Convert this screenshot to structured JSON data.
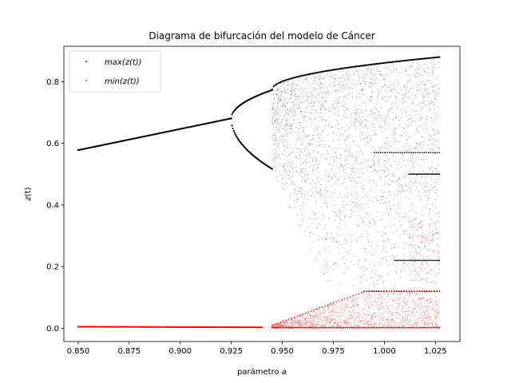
{
  "chart_data": {
    "type": "scatter",
    "title": "Diagrama de bifurcación del modelo de Cáncer",
    "xlabel_text": "parámetro",
    "xlabel_var": "a",
    "ylabel_var": "z",
    "ylabel_arg": "(t)",
    "xlim": [
      0.843,
      1.037
    ],
    "ylim": [
      -0.043,
      0.915
    ],
    "xticks": [
      0.85,
      0.875,
      0.9,
      0.925,
      0.95,
      0.975,
      1.0,
      1.025
    ],
    "xtick_labels": [
      "0.850",
      "0.875",
      "0.900",
      "0.925",
      "0.950",
      "0.975",
      "1.000",
      "1.025"
    ],
    "yticks": [
      0.0,
      0.2,
      0.4,
      0.6,
      0.8
    ],
    "ytick_labels": [
      "0.0",
      "0.2",
      "0.4",
      "0.6",
      "0.8"
    ],
    "grid": false,
    "legend_position": "top-left",
    "a_range": [
      0.85,
      1.027
    ],
    "series": [
      {
        "name": "max(z(t))",
        "color": "#000000",
        "stable_branch": {
          "a": [
            0.85,
            0.925
          ],
          "z": [
            0.578,
            0.681
          ]
        },
        "period2_upper": {
          "a": [
            0.925,
            0.945
          ],
          "z": [
            0.681,
            0.773
          ]
        },
        "period2_lower": {
          "a": [
            0.925,
            0.945
          ],
          "z": [
            0.681,
            0.517
          ]
        },
        "chaotic_band": {
          "a": [
            0.945,
            1.027
          ],
          "upper_z": [
            0.775,
            0.88
          ],
          "lower_z_min": 0.13
        }
      },
      {
        "name": "min(z(t))",
        "color": "#ff0000",
        "stable_branch": {
          "a": [
            0.85,
            0.94
          ],
          "z": [
            0.005,
            0.003
          ]
        },
        "chaotic_band": {
          "a": [
            0.945,
            1.027
          ],
          "upper_z": [
            0.01,
            0.12
          ],
          "lower_z": 0.0
        }
      }
    ]
  }
}
